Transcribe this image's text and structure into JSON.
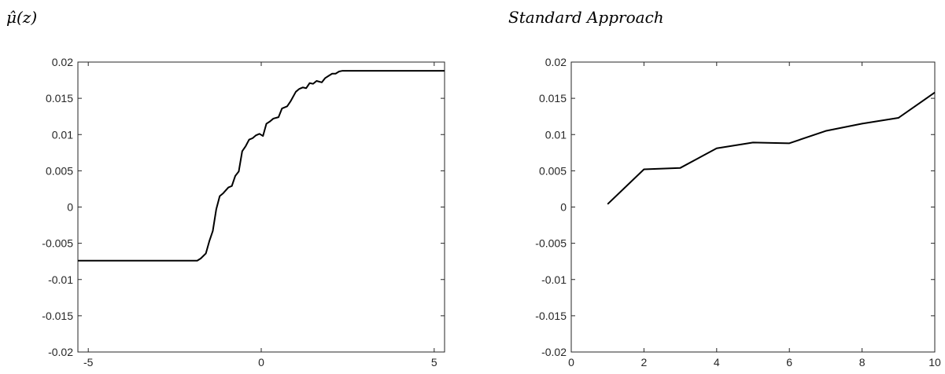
{
  "chart_data": [
    {
      "type": "line",
      "title": "μ̂(z)",
      "xlabel": "",
      "ylabel": "",
      "xlim": [
        -5.3,
        5.3
      ],
      "ylim": [
        -0.02,
        0.02
      ],
      "xticks": [
        -5,
        0,
        5
      ],
      "xtick_labels": [
        "-5",
        "0",
        "5"
      ],
      "yticks": [
        -0.02,
        -0.015,
        -0.01,
        -0.005,
        0,
        0.005,
        0.01,
        0.015,
        0.02
      ],
      "ytick_labels": [
        "-0.02",
        "-0.015",
        "-0.01",
        "-0.005",
        "0",
        "0.005",
        "0.01",
        "0.015",
        "0.02"
      ],
      "grid": false,
      "series": [
        {
          "color": "#000000",
          "x": [
            -5.3,
            -1.85,
            -1.75,
            -1.6,
            -1.5,
            -1.4,
            -1.3,
            -1.2,
            -1.1,
            -0.95,
            -0.85,
            -0.75,
            -0.65,
            -0.55,
            -0.45,
            -0.35,
            -0.25,
            -0.15,
            -0.05,
            0.05,
            0.15,
            0.25,
            0.35,
            0.5,
            0.6,
            0.75,
            0.85,
            1.0,
            1.1,
            1.2,
            1.3,
            1.4,
            1.5,
            1.6,
            1.75,
            1.85,
            1.95,
            2.05,
            2.15,
            2.25,
            2.35,
            2.45,
            2.6,
            2.7,
            2.85,
            2.95,
            3.05,
            5.3
          ],
          "y": [
            -0.0074,
            -0.0074,
            -0.0071,
            -0.0064,
            -0.0047,
            -0.0033,
            -0.0003,
            0.0015,
            0.0019,
            0.0027,
            0.0029,
            0.0043,
            0.0049,
            0.0077,
            0.0084,
            0.0093,
            0.0095,
            0.0099,
            0.0101,
            0.0098,
            0.0115,
            0.0118,
            0.0122,
            0.0124,
            0.0136,
            0.0139,
            0.0146,
            0.0159,
            0.0163,
            0.0165,
            0.0164,
            0.0171,
            0.017,
            0.0174,
            0.0172,
            0.0178,
            0.0181,
            0.0184,
            0.0184,
            0.0187,
            0.0188,
            0.0188,
            0.0188,
            0.0188,
            0.0188,
            0.0188,
            0.0188,
            0.0188
          ]
        }
      ]
    },
    {
      "type": "line",
      "title": "Standard Approach",
      "xlabel": "",
      "ylabel": "",
      "xlim": [
        0,
        10
      ],
      "ylim": [
        -0.02,
        0.02
      ],
      "xticks": [
        0,
        2,
        4,
        6,
        8,
        10
      ],
      "xtick_labels": [
        "0",
        "2",
        "4",
        "6",
        "8",
        "10"
      ],
      "yticks": [
        -0.02,
        -0.015,
        -0.01,
        -0.005,
        0,
        0.005,
        0.01,
        0.015,
        0.02
      ],
      "ytick_labels": [
        "-0.02",
        "-0.015",
        "-0.01",
        "-0.005",
        "0",
        "0.005",
        "0.01",
        "0.015",
        "0.02"
      ],
      "grid": false,
      "series": [
        {
          "color": "#000000",
          "x": [
            1,
            2,
            3,
            4,
            5,
            6,
            7,
            8,
            9,
            10
          ],
          "y": [
            0.0004,
            0.0052,
            0.0054,
            0.0081,
            0.0089,
            0.0088,
            0.0105,
            0.0115,
            0.0123,
            0.0158
          ]
        }
      ]
    }
  ]
}
